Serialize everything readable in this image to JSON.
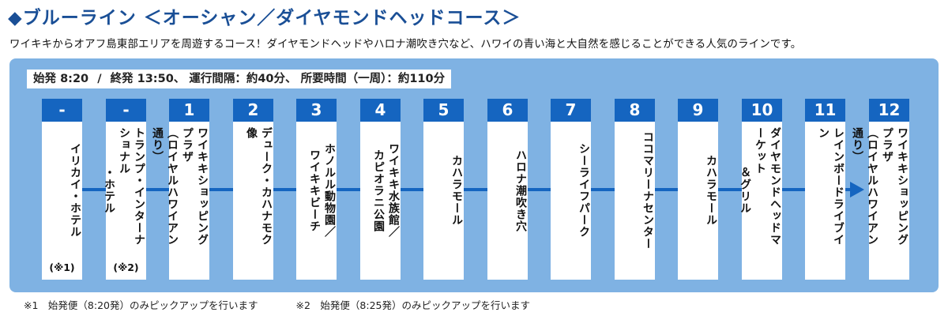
{
  "header": {
    "title": "◆ブルーライン ＜オーシャン／ダイヤモンドヘッドコース＞",
    "description": "ワイキキからオアフ島東部エリアを周遊するコース！ダイヤモンドヘッドやハロナ潮吹き穴など、ハワイの青い海と大自然を感じることができる人気のラインです。"
  },
  "schedule": {
    "first_label": "始発",
    "first_time": "8:20",
    "last_label": "終発",
    "last_time": "13:50、",
    "interval_text": "運行間隔：約40分、",
    "duration_text": "所要時間（一周）：約110分"
  },
  "stops": [
    {
      "num": "-",
      "lines": [
        "イリカイ・ホテル"
      ],
      "note": "(※1)"
    },
    {
      "num": "-",
      "lines": [
        "トランプ・インターナショナル",
        "・ホテル"
      ],
      "note": "(※2)"
    },
    {
      "num": "1",
      "lines": [
        "ワイキキショッピングプラザ",
        "（ロイヤルハワイアン通り）"
      ],
      "note": ""
    },
    {
      "num": "2",
      "lines": [
        "デューク・カハナモク像"
      ],
      "note": ""
    },
    {
      "num": "3",
      "lines": [
        "ホノルル動物園／",
        "ワイキキビーチ"
      ],
      "note": ""
    },
    {
      "num": "4",
      "lines": [
        "ワイキキ水族館／",
        "カピオラニ公園"
      ],
      "note": ""
    },
    {
      "num": "5",
      "lines": [
        "カハラモール"
      ],
      "note": ""
    },
    {
      "num": "6",
      "lines": [
        "ハロナ潮吹き穴"
      ],
      "note": ""
    },
    {
      "num": "7",
      "lines": [
        "シーライフパーク"
      ],
      "note": ""
    },
    {
      "num": "8",
      "lines": [
        "ココマリーナセンター"
      ],
      "note": ""
    },
    {
      "num": "9",
      "lines": [
        "カハラモール"
      ],
      "note": ""
    },
    {
      "num": "10",
      "lines": [
        "ダイヤモンドヘッドマーケット",
        "＆グリル"
      ],
      "note": ""
    },
    {
      "num": "11",
      "lines": [
        "レインボードライブイン"
      ],
      "note": ""
    },
    {
      "num": "12",
      "lines": [
        "ワイキキショッピングプラザ",
        "（ロイヤルハワイアン通り）"
      ],
      "note": ""
    }
  ],
  "footnotes": [
    "※1　始発便（8:20発）のみピックアップを行います",
    "※2　始発便（8:25発）のみピックアップを行います"
  ],
  "colors": {
    "title": "#1a4f96",
    "panel": "#7fb2e3",
    "accent": "#1565c0"
  }
}
